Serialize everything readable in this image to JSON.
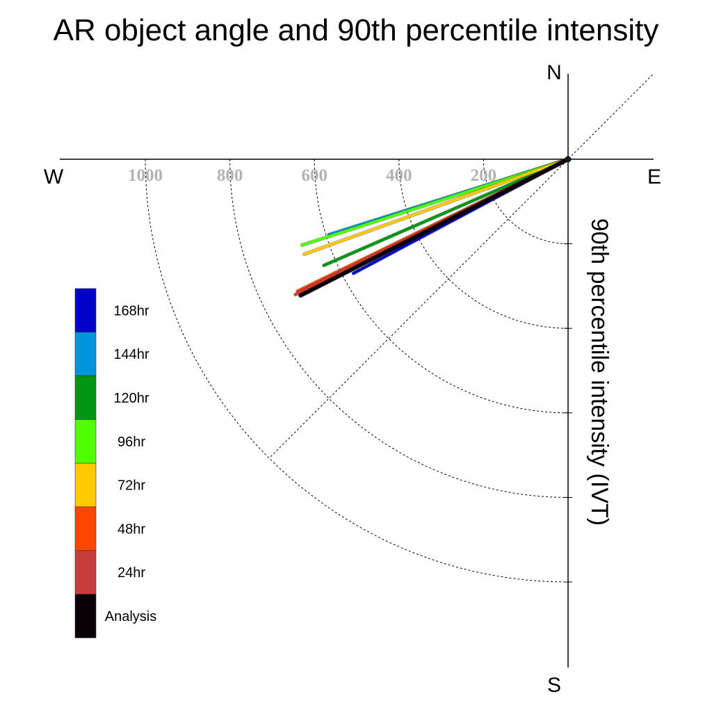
{
  "chart_data": {
    "type": "polar-vector",
    "title": "AR object angle and 90th percentile intensity",
    "radial_label": "90th percentile intensity (IVT)",
    "compass": {
      "north": "N",
      "south": "S",
      "east": "E",
      "west": "W"
    },
    "radial_ticks": [
      200,
      400,
      600,
      800,
      1000
    ],
    "radial_tick_labels": [
      "200",
      "400",
      "600",
      "800",
      "1000"
    ],
    "radial_range": [
      0,
      1000
    ],
    "grid": true,
    "legend_position": "left",
    "series": [
      {
        "name": "168hr",
        "color": "#0000c8",
        "angle_deg": 208.0,
        "intensity": 575
      },
      {
        "name": "144hr",
        "color": "#0096dc",
        "angle_deg": 197.5,
        "intensity": 593
      },
      {
        "name": "120hr",
        "color": "#009614",
        "angle_deg": 203.5,
        "intensity": 630
      },
      {
        "name": "96hr",
        "color": "#50ff00",
        "angle_deg": 197.9,
        "intensity": 661
      },
      {
        "name": "72hr",
        "color": "#ffc800",
        "angle_deg": 199.8,
        "intensity": 663
      },
      {
        "name": "48hr",
        "color": "#ff4600",
        "angle_deg": 206.0,
        "intensity": 712
      },
      {
        "name": "24hr",
        "color": "#c83c3c",
        "angle_deg": 206.4,
        "intensity": 720
      },
      {
        "name": "Analysis",
        "color": "#0a0008",
        "angle_deg": 207.0,
        "intensity": 710
      }
    ]
  }
}
